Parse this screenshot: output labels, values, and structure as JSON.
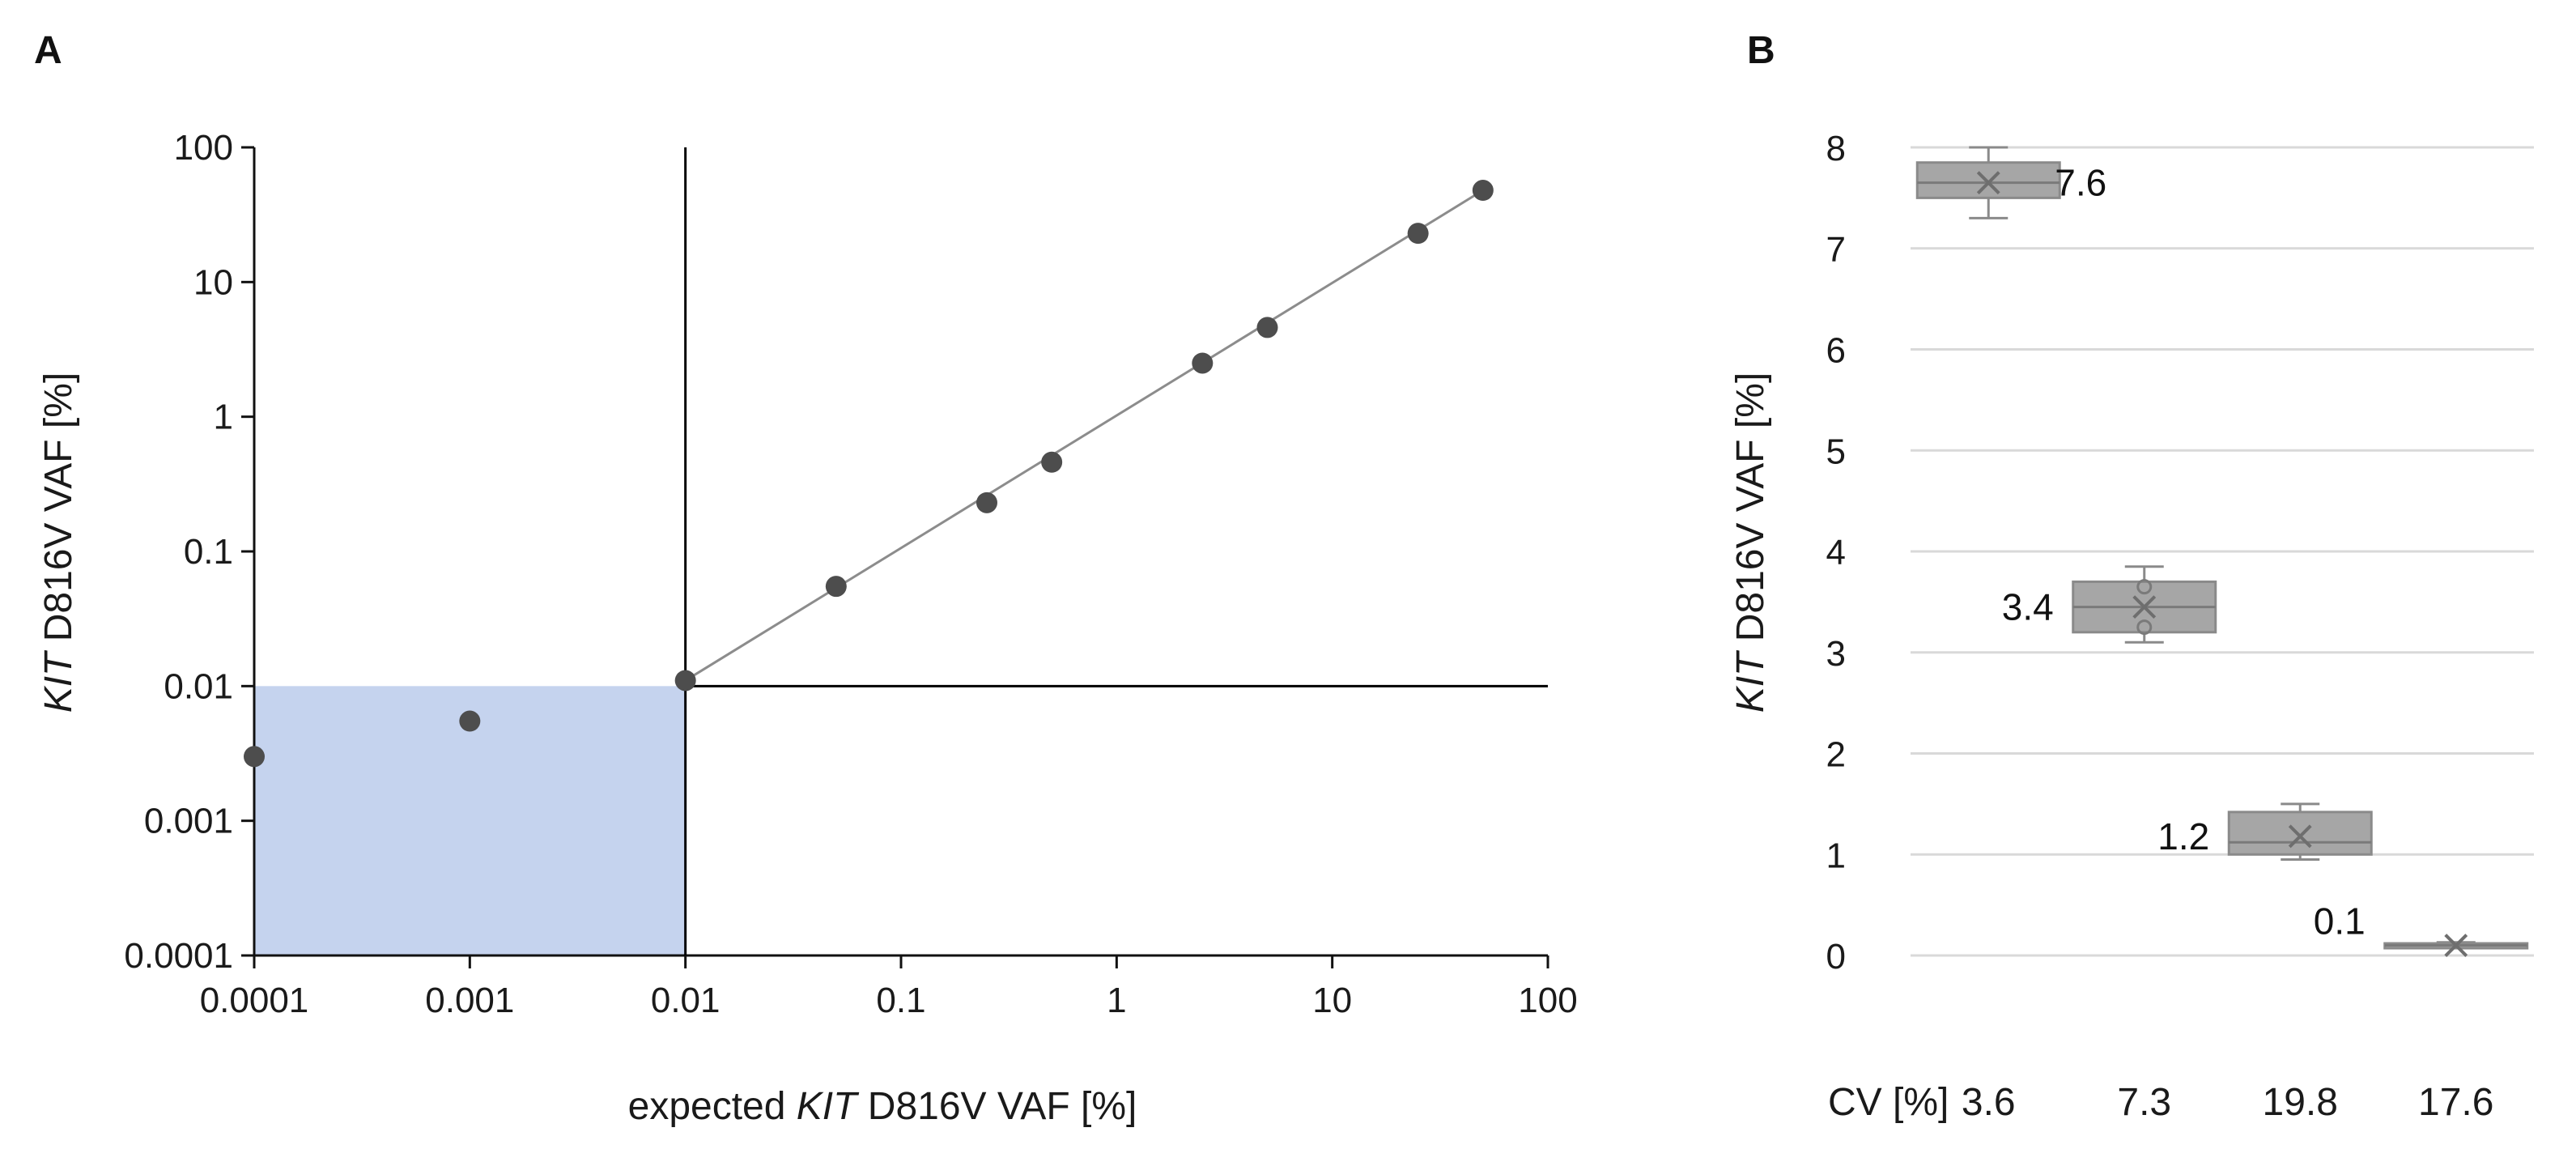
{
  "colors": {
    "point": "#4d4d4d",
    "trend": "#8c8c8c",
    "lod_fill": "#c5d3ee",
    "lod_line": "#000000",
    "box_fill": "#a6a6a6",
    "box_stroke": "#8a8a8a",
    "grid": "#d9d9d9"
  },
  "chart_data": [
    {
      "panel": "A",
      "type": "scatter",
      "scale": "log-log",
      "xlabel_prefix": "expected ",
      "xlabel_italic": "KIT",
      "xlabel_suffix": " D816V VAF [%]",
      "ylabel_italic": "KIT",
      "ylabel_suffix": " D816V VAF [%]",
      "xlim": [
        0.0001,
        100
      ],
      "ylim": [
        0.0001,
        100
      ],
      "x_ticks": [
        {
          "value": 0.0001,
          "label": "0.0001"
        },
        {
          "value": 0.001,
          "label": "0.001"
        },
        {
          "value": 0.01,
          "label": "0.01"
        },
        {
          "value": 0.1,
          "label": "0.1"
        },
        {
          "value": 1,
          "label": "1"
        },
        {
          "value": 10,
          "label": "10"
        },
        {
          "value": 100,
          "label": "100"
        }
      ],
      "y_ticks": [
        {
          "value": 0.0001,
          "label": "0.0001"
        },
        {
          "value": 0.001,
          "label": "0.001"
        },
        {
          "value": 0.01,
          "label": "0.01"
        },
        {
          "value": 0.1,
          "label": "0.1"
        },
        {
          "value": 1,
          "label": "1"
        },
        {
          "value": 10,
          "label": "10"
        },
        {
          "value": 100,
          "label": "100"
        }
      ],
      "points": [
        {
          "x": 0.0001,
          "y": 0.003
        },
        {
          "x": 0.001,
          "y": 0.0055
        },
        {
          "x": 0.01,
          "y": 0.011
        },
        {
          "x": 0.05,
          "y": 0.055
        },
        {
          "x": 0.25,
          "y": 0.23
        },
        {
          "x": 0.5,
          "y": 0.46
        },
        {
          "x": 2.5,
          "y": 2.5
        },
        {
          "x": 5,
          "y": 4.6
        },
        {
          "x": 25,
          "y": 23
        },
        {
          "x": 50,
          "y": 48
        }
      ],
      "trendline": {
        "from": [
          0.01,
          0.011
        ],
        "to": [
          50,
          48
        ]
      },
      "limit_of_detection": {
        "x": 0.01,
        "y": 0.01
      }
    },
    {
      "panel": "B",
      "type": "box",
      "ylabel_italic": "KIT",
      "ylabel_suffix": " D816V VAF [%]",
      "ylim": [
        0,
        8
      ],
      "y_ticks": [
        0,
        1,
        2,
        3,
        4,
        5,
        6,
        7,
        8
      ],
      "cv_label": "CV [%]",
      "boxes": [
        {
          "min": 7.3,
          "q1": 7.5,
          "median": 7.65,
          "q3": 7.85,
          "max": 8.0,
          "mean": 7.65,
          "label": "7.6",
          "cv": "3.6",
          "outliers": []
        },
        {
          "min": 3.1,
          "q1": 3.2,
          "median": 3.45,
          "q3": 3.7,
          "max": 3.85,
          "mean": 3.45,
          "label": "3.4",
          "cv": "7.3",
          "outliers": [
            3.65,
            3.25
          ]
        },
        {
          "min": 0.95,
          "q1": 1.0,
          "median": 1.12,
          "q3": 1.42,
          "max": 1.5,
          "mean": 1.18,
          "label": "1.2",
          "cv": "19.8",
          "outliers": []
        },
        {
          "min": 0.08,
          "q1": 0.09,
          "median": 0.1,
          "q3": 0.12,
          "max": 0.13,
          "mean": 0.1,
          "label": "0.1",
          "cv": "17.6",
          "outliers": []
        }
      ]
    }
  ]
}
